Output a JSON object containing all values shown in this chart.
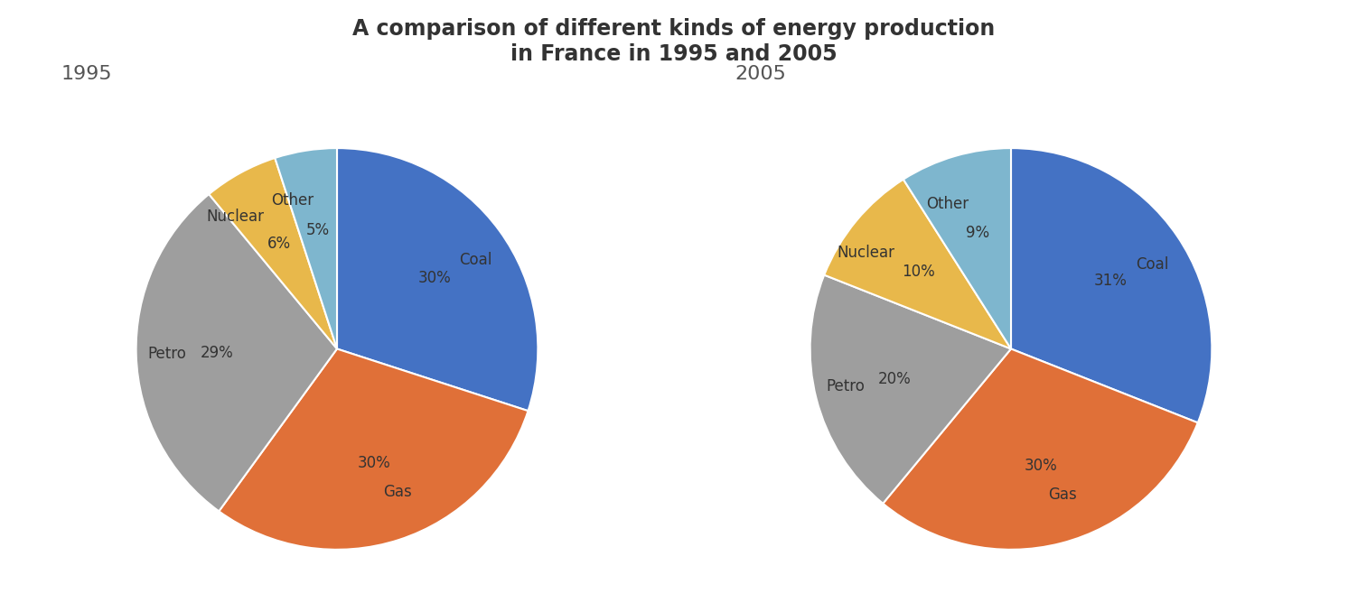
{
  "title": "A comparison of different kinds of energy production\nin France in 1995 and 2005",
  "title_fontsize": 17,
  "title_fontweight": "bold",
  "title_color": "#333333",
  "year_1995": "1995",
  "year_2005": "2005",
  "year_fontsize": 16,
  "year_color": "#555555",
  "labels_1995": [
    "Coal",
    "Gas",
    "Petro",
    "Nuclear",
    "Other"
  ],
  "values_1995": [
    30,
    30,
    29,
    6,
    5
  ],
  "labels_2005": [
    "Coal",
    "Gas",
    "Petro",
    "Nuclear",
    "Other"
  ],
  "values_2005": [
    31,
    30,
    20,
    10,
    9
  ],
  "colors_1995": [
    "#4472C4",
    "#E07038",
    "#9E9E9E",
    "#E8B84B",
    "#7EB6CE"
  ],
  "colors_2005": [
    "#4472C4",
    "#E07038",
    "#9E9E9E",
    "#E8B84B",
    "#7EB6CE"
  ],
  "label_fontsize": 12,
  "pct_fontsize": 12,
  "background_color": "#FFFFFF",
  "startangle_1995": 90,
  "startangle_2005": 90,
  "pctdistance": 0.6,
  "labeldistance": 0.75
}
